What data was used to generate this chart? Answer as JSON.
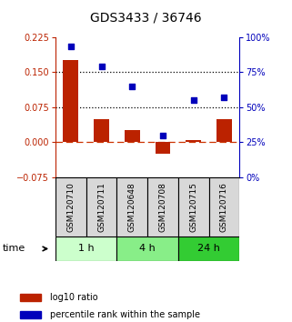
{
  "title": "GDS3433 / 36746",
  "samples": [
    "GSM120710",
    "GSM120711",
    "GSM120648",
    "GSM120708",
    "GSM120715",
    "GSM120716"
  ],
  "log10_ratio": [
    0.175,
    0.05,
    0.025,
    -0.025,
    0.005,
    0.05
  ],
  "percentile_rank": [
    93,
    79,
    65,
    30,
    55,
    57
  ],
  "ylim_left": [
    -0.075,
    0.225
  ],
  "ylim_right": [
    0,
    100
  ],
  "yticks_left": [
    -0.075,
    0,
    0.075,
    0.15,
    0.225
  ],
  "yticks_right": [
    0,
    25,
    50,
    75,
    100
  ],
  "hlines": [
    0.075,
    0.15
  ],
  "bar_color": "#bb2200",
  "scatter_color": "#0000bb",
  "dashed_color": "#cc3300",
  "time_groups": [
    {
      "label": "1 h",
      "indices": [
        0,
        1
      ],
      "color": "#ccffcc"
    },
    {
      "label": "4 h",
      "indices": [
        2,
        3
      ],
      "color": "#88ee88"
    },
    {
      "label": "24 h",
      "indices": [
        4,
        5
      ],
      "color": "#33cc33"
    }
  ],
  "legend_bar_label": "log10 ratio",
  "legend_scatter_label": "percentile rank within the sample",
  "title_fontsize": 10,
  "tick_fontsize": 7,
  "legend_fontsize": 7,
  "sample_label_fontsize": 6.5,
  "time_fontsize": 8,
  "group_fontsize": 8
}
